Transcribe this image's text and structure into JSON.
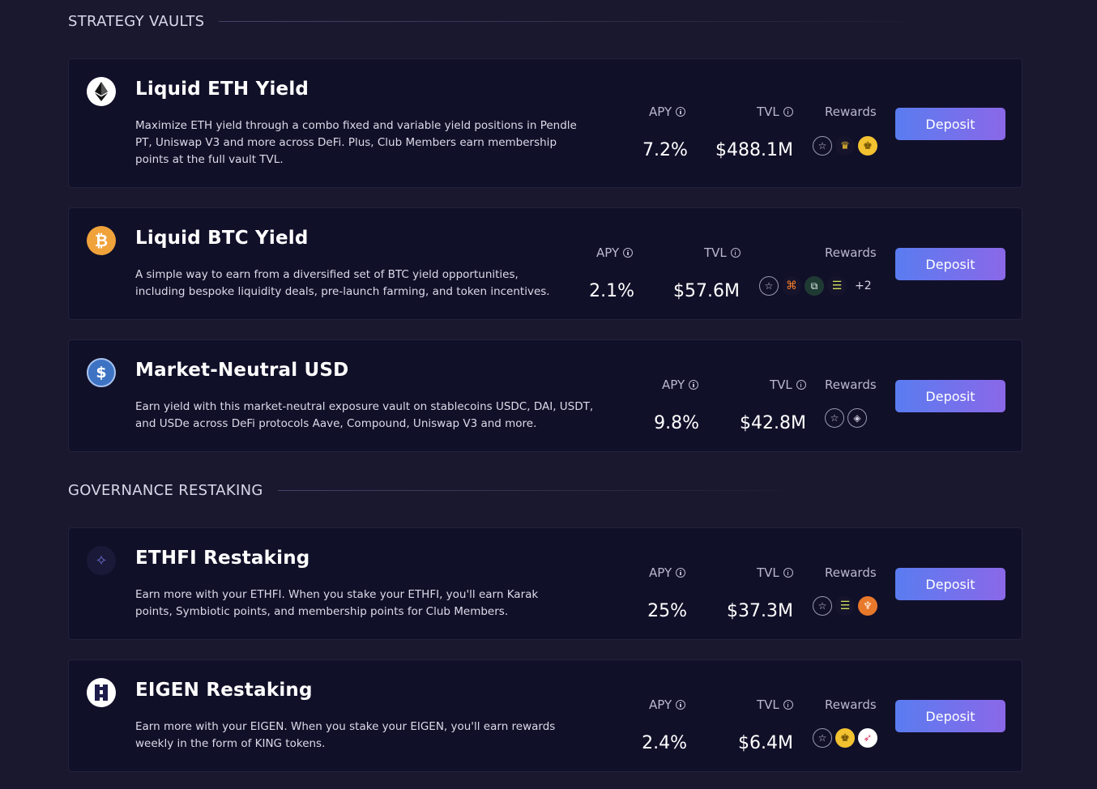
{
  "sections": [
    {
      "title": "STRATEGY VAULTS"
    },
    {
      "title": "GOVERNANCE RESTAKING"
    }
  ],
  "labels": {
    "apy": "APY",
    "tvl": "TVL",
    "rewards": "Rewards",
    "deposit": "Deposit"
  },
  "vaults": [
    {
      "title": "Liquid ETH Yield",
      "description": "Maximize ETH yield through a combo fixed and variable yield positions in Pendle PT, Uniswap V3 and more across DeFi. Plus, Club Members earn membership points at the full vault TVL.",
      "apy": "7.2%",
      "tvl": "$488.1M",
      "icon": "eth-icon",
      "rewards": [
        "star-icon",
        "crown-icon",
        "king-icon"
      ],
      "more": ""
    },
    {
      "title": "Liquid BTC Yield",
      "description": "A simple way to earn from a diversified set of BTC yield opportunities, including bespoke liquidity deals, pre-launch farming, and token incentives.",
      "apy": "2.1%",
      "tvl": "$57.6M",
      "icon": "btc-icon",
      "rewards": [
        "star-icon",
        "frame-icon",
        "link-icon",
        "stack-icon"
      ],
      "more": "+2"
    },
    {
      "title": "Market-Neutral USD",
      "description": "Earn yield with this market-neutral exposure vault on stablecoins USDC, DAI, USDT, and USDe across DeFi protocols Aave, Compound, Uniswap V3 and more.",
      "apy": "9.8%",
      "tvl": "$42.8M",
      "icon": "usdc-icon",
      "rewards": [
        "star-icon",
        "ethfi-ring-icon"
      ],
      "more": ""
    },
    {
      "title": "ETHFI Restaking",
      "description": "Earn more with your ETHFI. When you stake your ETHFI, you'll earn Karak points, Symbiotic points, and membership points for Club Members.",
      "apy": "25%",
      "tvl": "$37.3M",
      "icon": "ethfi-icon",
      "rewards": [
        "star-icon",
        "stack-icon",
        "karak-icon"
      ],
      "more": ""
    },
    {
      "title": "EIGEN Restaking",
      "description": "Earn more with your EIGEN. When you stake your EIGEN, you'll earn rewards weekly in the form of KING tokens.",
      "apy": "2.4%",
      "tvl": "$6.4M",
      "icon": "eigen-icon",
      "rewards": [
        "star-icon",
        "king-icon",
        "swirl-icon"
      ],
      "more": ""
    }
  ],
  "colors": {
    "background": "#19182f",
    "card": "#111029",
    "deposit_start": "#5a7cf0",
    "deposit_end": "#8a68e8",
    "btc": "#f0a23b",
    "usdc": "#3e73c4",
    "king": "#f2c230"
  }
}
